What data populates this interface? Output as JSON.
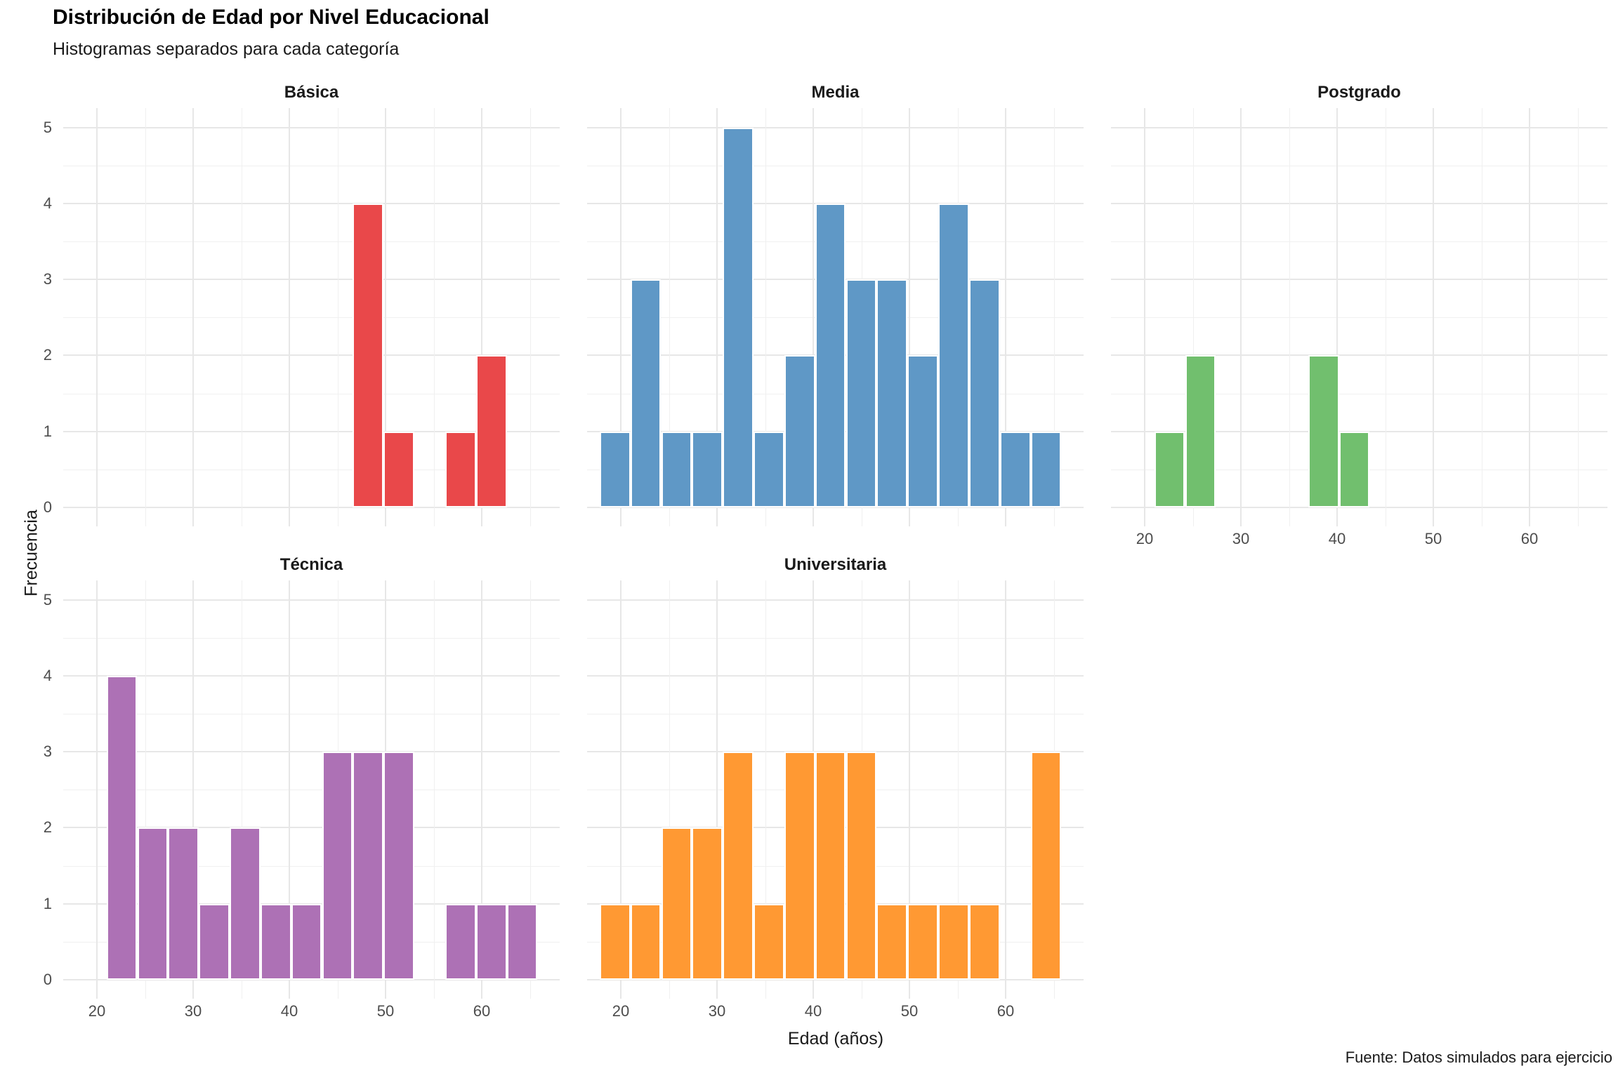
{
  "title": "Distribución de Edad por Nivel Educacional",
  "subtitle": "Histogramas separados para cada categoría",
  "caption": "Fuente: Datos simulados para ejercicio",
  "chart_data": {
    "type": "bar",
    "subtype": "faceted-histogram",
    "xlabel": "Edad (años)",
    "ylabel": "Frecuencia",
    "binwidth_years": 3.2,
    "x_ticks": [
      20,
      30,
      40,
      50,
      60
    ],
    "x_minor_ticks": [
      25,
      35,
      45,
      55,
      65
    ],
    "y_ticks": [
      0,
      1,
      2,
      3,
      4,
      5
    ],
    "ylim": [
      0,
      5
    ],
    "grid": true,
    "legend": "none",
    "facets": [
      {
        "label": "Básica",
        "color": "#E9484A",
        "bins": [
          [
            46.6,
            4
          ],
          [
            49.8,
            1
          ],
          [
            56.2,
            1
          ],
          [
            59.4,
            2
          ]
        ]
      },
      {
        "label": "Media",
        "color": "#5F98C6",
        "bins": [
          [
            17.8,
            1
          ],
          [
            21.0,
            3
          ],
          [
            24.2,
            1
          ],
          [
            27.4,
            1
          ],
          [
            30.6,
            5
          ],
          [
            33.8,
            1
          ],
          [
            37.0,
            2
          ],
          [
            40.2,
            4
          ],
          [
            43.4,
            3
          ],
          [
            46.6,
            3
          ],
          [
            49.8,
            2
          ],
          [
            53.0,
            4
          ],
          [
            56.2,
            3
          ],
          [
            59.4,
            1
          ],
          [
            62.6,
            1
          ]
        ]
      },
      {
        "label": "Postgrado",
        "color": "#71BF6E",
        "bins": [
          [
            21.0,
            1
          ],
          [
            24.2,
            2
          ],
          [
            37.0,
            2
          ],
          [
            40.2,
            1
          ]
        ]
      },
      {
        "label": "Técnica",
        "color": "#AD71B5",
        "bins": [
          [
            21.0,
            4
          ],
          [
            24.2,
            2
          ],
          [
            27.4,
            2
          ],
          [
            30.6,
            1
          ],
          [
            33.8,
            2
          ],
          [
            37.0,
            1
          ],
          [
            40.2,
            1
          ],
          [
            43.4,
            3
          ],
          [
            46.6,
            3
          ],
          [
            49.8,
            3
          ],
          [
            56.2,
            1
          ],
          [
            59.4,
            1
          ],
          [
            62.6,
            1
          ]
        ]
      },
      {
        "label": "Universitaria",
        "color": "#FF9933",
        "bins": [
          [
            17.8,
            1
          ],
          [
            21.0,
            1
          ],
          [
            24.2,
            2
          ],
          [
            27.4,
            2
          ],
          [
            30.6,
            3
          ],
          [
            33.8,
            1
          ],
          [
            37.0,
            3
          ],
          [
            40.2,
            3
          ],
          [
            43.4,
            3
          ],
          [
            46.6,
            1
          ],
          [
            49.8,
            1
          ],
          [
            53.0,
            1
          ],
          [
            56.2,
            1
          ],
          [
            62.6,
            3
          ]
        ]
      }
    ]
  }
}
